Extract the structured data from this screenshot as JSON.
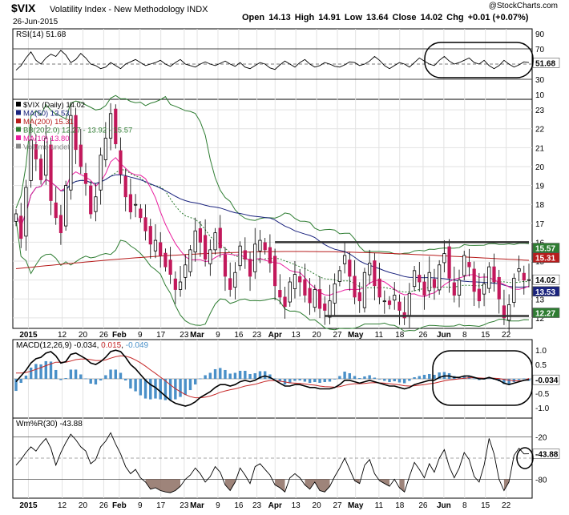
{
  "header": {
    "symbol": "$VIX",
    "name": "Volatility Index - New Methodology",
    "exchange": "INDX",
    "date": "26-Jun-2015",
    "open_label": "Open",
    "open": "14.13",
    "high_label": "High",
    "high": "14.91",
    "low_label": "Low",
    "low": "13.64",
    "close_label": "Close",
    "close": "14.02",
    "chg_label": "Chg",
    "chg": "+0.01 (+0.07%)",
    "copyright": "@StockCharts.com"
  },
  "chart_data": [
    {
      "type": "line",
      "panel": "rsi",
      "legend": "RSI(14) 51.68",
      "y_ticks": [
        "90",
        "70",
        "50",
        "30",
        "10"
      ],
      "ylim": [
        10,
        90
      ],
      "reference_lines": [
        30,
        50,
        70
      ],
      "last_value_label": "51.68",
      "values": [
        42,
        48,
        58,
        66,
        55,
        50,
        58,
        63,
        60,
        68,
        62,
        52,
        56,
        64,
        58,
        50,
        48,
        44,
        46,
        52,
        48,
        44,
        50,
        53,
        56,
        52,
        48,
        50,
        52,
        55,
        50,
        47,
        52,
        56,
        50,
        48,
        46,
        50,
        53,
        50,
        48,
        51,
        54,
        50,
        47,
        52,
        46,
        44,
        48,
        52,
        50,
        45,
        43,
        49,
        54,
        50,
        46,
        52,
        56,
        50,
        46,
        48,
        52,
        50,
        47,
        46,
        49,
        53,
        52,
        48,
        50,
        54,
        60,
        55,
        48,
        44,
        48,
        52,
        50,
        46,
        52,
        58,
        54,
        50,
        48,
        55,
        60,
        54,
        50,
        52,
        55,
        58,
        52,
        50,
        55,
        48,
        44,
        48,
        55,
        50,
        46,
        49,
        53,
        52
      ]
    },
    {
      "type": "candlestick",
      "panel": "price",
      "legend": [
        {
          "label": "$VIX (Daily) 14.02",
          "color": "#000000"
        },
        {
          "label": "MA(50) 13.53",
          "color": "#1a237e"
        },
        {
          "label": "MA(200) 15.31",
          "color": "#b71c1c"
        },
        {
          "label": "BB(20,2.0) 12.27 - 13.92 - 15.57",
          "color": "#2e7d32"
        },
        {
          "label": "MA(10) 13.80",
          "color": "#e91e9e"
        },
        {
          "label": "Volume undef",
          "color": "#888888"
        }
      ],
      "y_ticks": [
        "23",
        "22",
        "21",
        "20",
        "19",
        "18",
        "17",
        "16",
        "15",
        "14",
        "13",
        "12"
      ],
      "price_tags": [
        {
          "value": 15.57,
          "label": "15.57"
        },
        {
          "value": 15.31,
          "label": "15.31"
        },
        {
          "value": 14.02,
          "label": "14.02"
        },
        {
          "value": 13.53,
          "label": "13.53"
        },
        {
          "value": 12.27,
          "label": "12.27"
        }
      ],
      "support_line": 12.1,
      "resistance_line": 16.0,
      "up_color": "#000000",
      "down_color": "#c2185b",
      "close": [
        17.5,
        16.2,
        18.9,
        21.4,
        20.4,
        19.3,
        21.5,
        18.2,
        17.3,
        16.5,
        19.0,
        22.7,
        20.9,
        20.0,
        19.1,
        17.5,
        18.4,
        20.6,
        21.5,
        22.8,
        21.2,
        19.6,
        18.4,
        17.6,
        18.0,
        17.3,
        16.6,
        15.9,
        16.1,
        15.3,
        14.7,
        14.3,
        13.5,
        13.9,
        14.8,
        15.6,
        16.6,
        16.0,
        15.1,
        15.6,
        16.5,
        15.7,
        14.2,
        13.5,
        14.4,
        15.8,
        15.1,
        14.2,
        15.9,
        16.1,
        15.6,
        14.9,
        13.7,
        13.1,
        12.6,
        13.9,
        14.3,
        13.9,
        13.2,
        12.8,
        13.5,
        12.5,
        12.4,
        12.9,
        13.8,
        14.5,
        15.3,
        14.2,
        13.1,
        12.9,
        14.4,
        14.9,
        13.7,
        13.1,
        12.9,
        12.7,
        13.2,
        12.4,
        12.0,
        13.3,
        14.5,
        13.9,
        13.2,
        14.4,
        13.6,
        14.8,
        15.4,
        14.1,
        13.2,
        14.0,
        15.3,
        14.7,
        13.4,
        12.9,
        13.8,
        14.7,
        13.9,
        13.0,
        12.0,
        12.7,
        14.1,
        14.6,
        14.0,
        14.02
      ]
    },
    {
      "type": "line",
      "panel": "macd",
      "legend_label": "MACD(12,26,9)",
      "macd_value": "-0.034",
      "signal_value": "0.015",
      "hist_value": "-0.049",
      "y_ticks": [
        "1.0",
        "0.5",
        "-0.5",
        "-1.0"
      ],
      "ylim": [
        -1.2,
        1.2
      ],
      "last_value_label": "-0.034",
      "macd": [
        -0.1,
        0.1,
        0.3,
        0.55,
        0.7,
        0.75,
        0.9,
        0.95,
        0.8,
        0.55,
        0.6,
        0.85,
        0.9,
        0.8,
        0.7,
        0.55,
        0.5,
        0.6,
        0.75,
        0.95,
        1.0,
        0.95,
        0.75,
        0.5,
        0.35,
        0.15,
        -0.05,
        -0.2,
        -0.3,
        -0.45,
        -0.6,
        -0.75,
        -0.85,
        -0.9,
        -0.95,
        -0.9,
        -0.8,
        -0.65,
        -0.55,
        -0.45,
        -0.3,
        -0.2,
        -0.2,
        -0.25,
        -0.2,
        -0.1,
        -0.05,
        -0.1,
        -0.05,
        0.05,
        0.1,
        0.05,
        -0.05,
        -0.15,
        -0.25,
        -0.25,
        -0.2,
        -0.2,
        -0.25,
        -0.3,
        -0.3,
        -0.35,
        -0.35,
        -0.35,
        -0.3,
        -0.2,
        -0.05,
        -0.05,
        -0.1,
        -0.15,
        -0.1,
        -0.05,
        -0.1,
        -0.15,
        -0.2,
        -0.25,
        -0.25,
        -0.3,
        -0.35,
        -0.3,
        -0.2,
        -0.15,
        -0.1,
        -0.05,
        -0.05,
        0.05,
        0.1,
        0.1,
        0.05,
        0.05,
        0.1,
        0.1,
        0.05,
        0.0,
        0.0,
        0.05,
        0.0,
        -0.05,
        -0.15,
        -0.2,
        -0.15,
        -0.1,
        -0.05,
        -0.034
      ],
      "signal": [
        0.2,
        0.2,
        0.22,
        0.27,
        0.33,
        0.39,
        0.46,
        0.52,
        0.58,
        0.58,
        0.58,
        0.62,
        0.67,
        0.69,
        0.69,
        0.67,
        0.64,
        0.64,
        0.66,
        0.72,
        0.77,
        0.8,
        0.79,
        0.74,
        0.66,
        0.56,
        0.44,
        0.31,
        0.19,
        0.06,
        -0.07,
        -0.21,
        -0.34,
        -0.45,
        -0.55,
        -0.62,
        -0.66,
        -0.66,
        -0.64,
        -0.6,
        -0.54,
        -0.47,
        -0.42,
        -0.38,
        -0.35,
        -0.3,
        -0.25,
        -0.22,
        -0.19,
        -0.14,
        -0.09,
        -0.06,
        -0.06,
        -0.08,
        -0.11,
        -0.14,
        -0.15,
        -0.16,
        -0.18,
        -0.2,
        -0.22,
        -0.25,
        -0.27,
        -0.28,
        -0.29,
        -0.27,
        -0.23,
        -0.19,
        -0.17,
        -0.17,
        -0.16,
        -0.14,
        -0.13,
        -0.14,
        -0.15,
        -0.17,
        -0.19,
        -0.21,
        -0.24,
        -0.25,
        -0.24,
        -0.22,
        -0.2,
        -0.17,
        -0.15,
        -0.11,
        -0.07,
        -0.04,
        -0.02,
        0.0,
        0.02,
        0.04,
        0.04,
        0.03,
        0.02,
        0.03,
        0.02,
        0.01,
        -0.02,
        -0.05,
        -0.07,
        -0.07,
        -0.06,
        0.015
      ]
    },
    {
      "type": "line",
      "panel": "williams",
      "legend": "Wm%R(30) -43.88",
      "y_ticks": [
        "-20",
        "-80"
      ],
      "ylim": [
        -100,
        0
      ],
      "reference_lines": [
        -20,
        -50,
        -80
      ],
      "last_value_label": "-43.88",
      "values": [
        -60,
        -52,
        -42,
        -34,
        -40,
        -30,
        -22,
        -36,
        -60,
        -42,
        -28,
        -16,
        -24,
        -34,
        -40,
        -58,
        -52,
        -34,
        -26,
        -14,
        -30,
        -44,
        -62,
        -72,
        -66,
        -78,
        -84,
        -94,
        -92,
        -96,
        -98,
        -99,
        -96,
        -90,
        -80,
        -74,
        -64,
        -72,
        -84,
        -76,
        -62,
        -70,
        -88,
        -96,
        -84,
        -64,
        -74,
        -86,
        -62,
        -58,
        -66,
        -74,
        -88,
        -92,
        -98,
        -78,
        -72,
        -78,
        -88,
        -94,
        -84,
        -96,
        -98,
        -90,
        -76,
        -64,
        -50,
        -66,
        -82,
        -86,
        -60,
        -52,
        -72,
        -82,
        -86,
        -90,
        -80,
        -92,
        -98,
        -76,
        -56,
        -66,
        -78,
        -58,
        -70,
        -50,
        -38,
        -62,
        -78,
        -64,
        -42,
        -52,
        -76,
        -84,
        -60,
        -22,
        -44,
        -80,
        -96,
        -84,
        -46,
        -36,
        -44,
        -43.88
      ]
    }
  ],
  "x_labels": [
    "2015",
    "12",
    "20",
    "26",
    "Feb",
    "9",
    "17",
    "23",
    "Mar",
    "9",
    "16",
    "23",
    "Apr",
    "13",
    "20",
    "27",
    "May",
    "11",
    "18",
    "26",
    "Jun",
    "8",
    "15",
    "22"
  ]
}
